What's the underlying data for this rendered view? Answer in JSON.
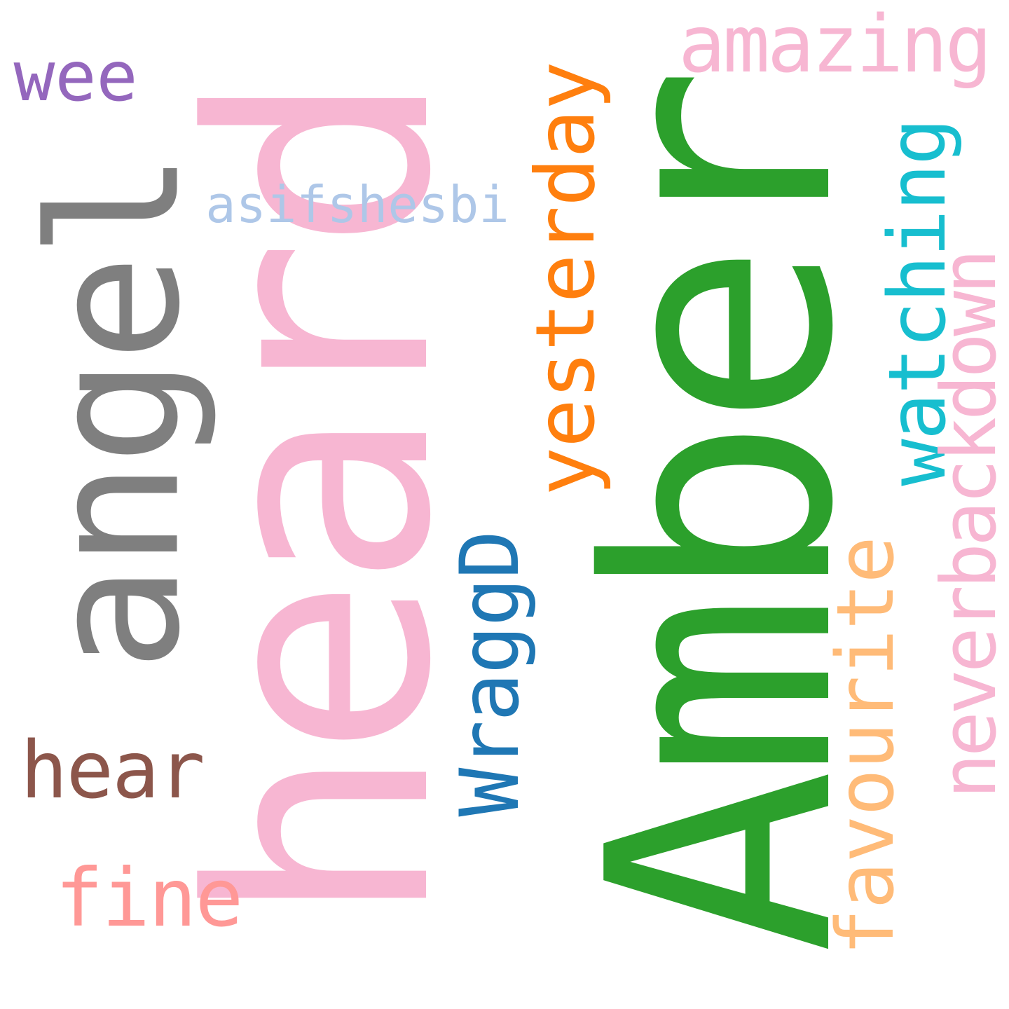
{
  "words": [
    {
      "key": "heard",
      "text": "heard",
      "color": "#f7b6d2"
    },
    {
      "key": "amber",
      "text": "Amber",
      "color": "#2ca02c"
    },
    {
      "key": "angel",
      "text": "angel",
      "color": "#7f7f7f"
    },
    {
      "key": "yesterday",
      "text": "yesterday",
      "color": "#ff7f0e"
    },
    {
      "key": "wraggd",
      "text": "WraggD",
      "color": "#1f77b4"
    },
    {
      "key": "watching",
      "text": "watching",
      "color": "#17becf"
    },
    {
      "key": "neverbackdown",
      "text": "neverbackdown",
      "color": "#f7b6d2"
    },
    {
      "key": "favourite",
      "text": "favourite",
      "color": "#ffbb78"
    },
    {
      "key": "amazing",
      "text": "amazing",
      "color": "#f7b6d2"
    },
    {
      "key": "wee",
      "text": "wee",
      "color": "#9467bd"
    },
    {
      "key": "asifshesbi",
      "text": "asifshesbi",
      "color": "#aec7e8"
    },
    {
      "key": "hear",
      "text": "hear",
      "color": "#8c564b"
    },
    {
      "key": "fine",
      "text": "fine",
      "color": "#ff9896"
    }
  ]
}
